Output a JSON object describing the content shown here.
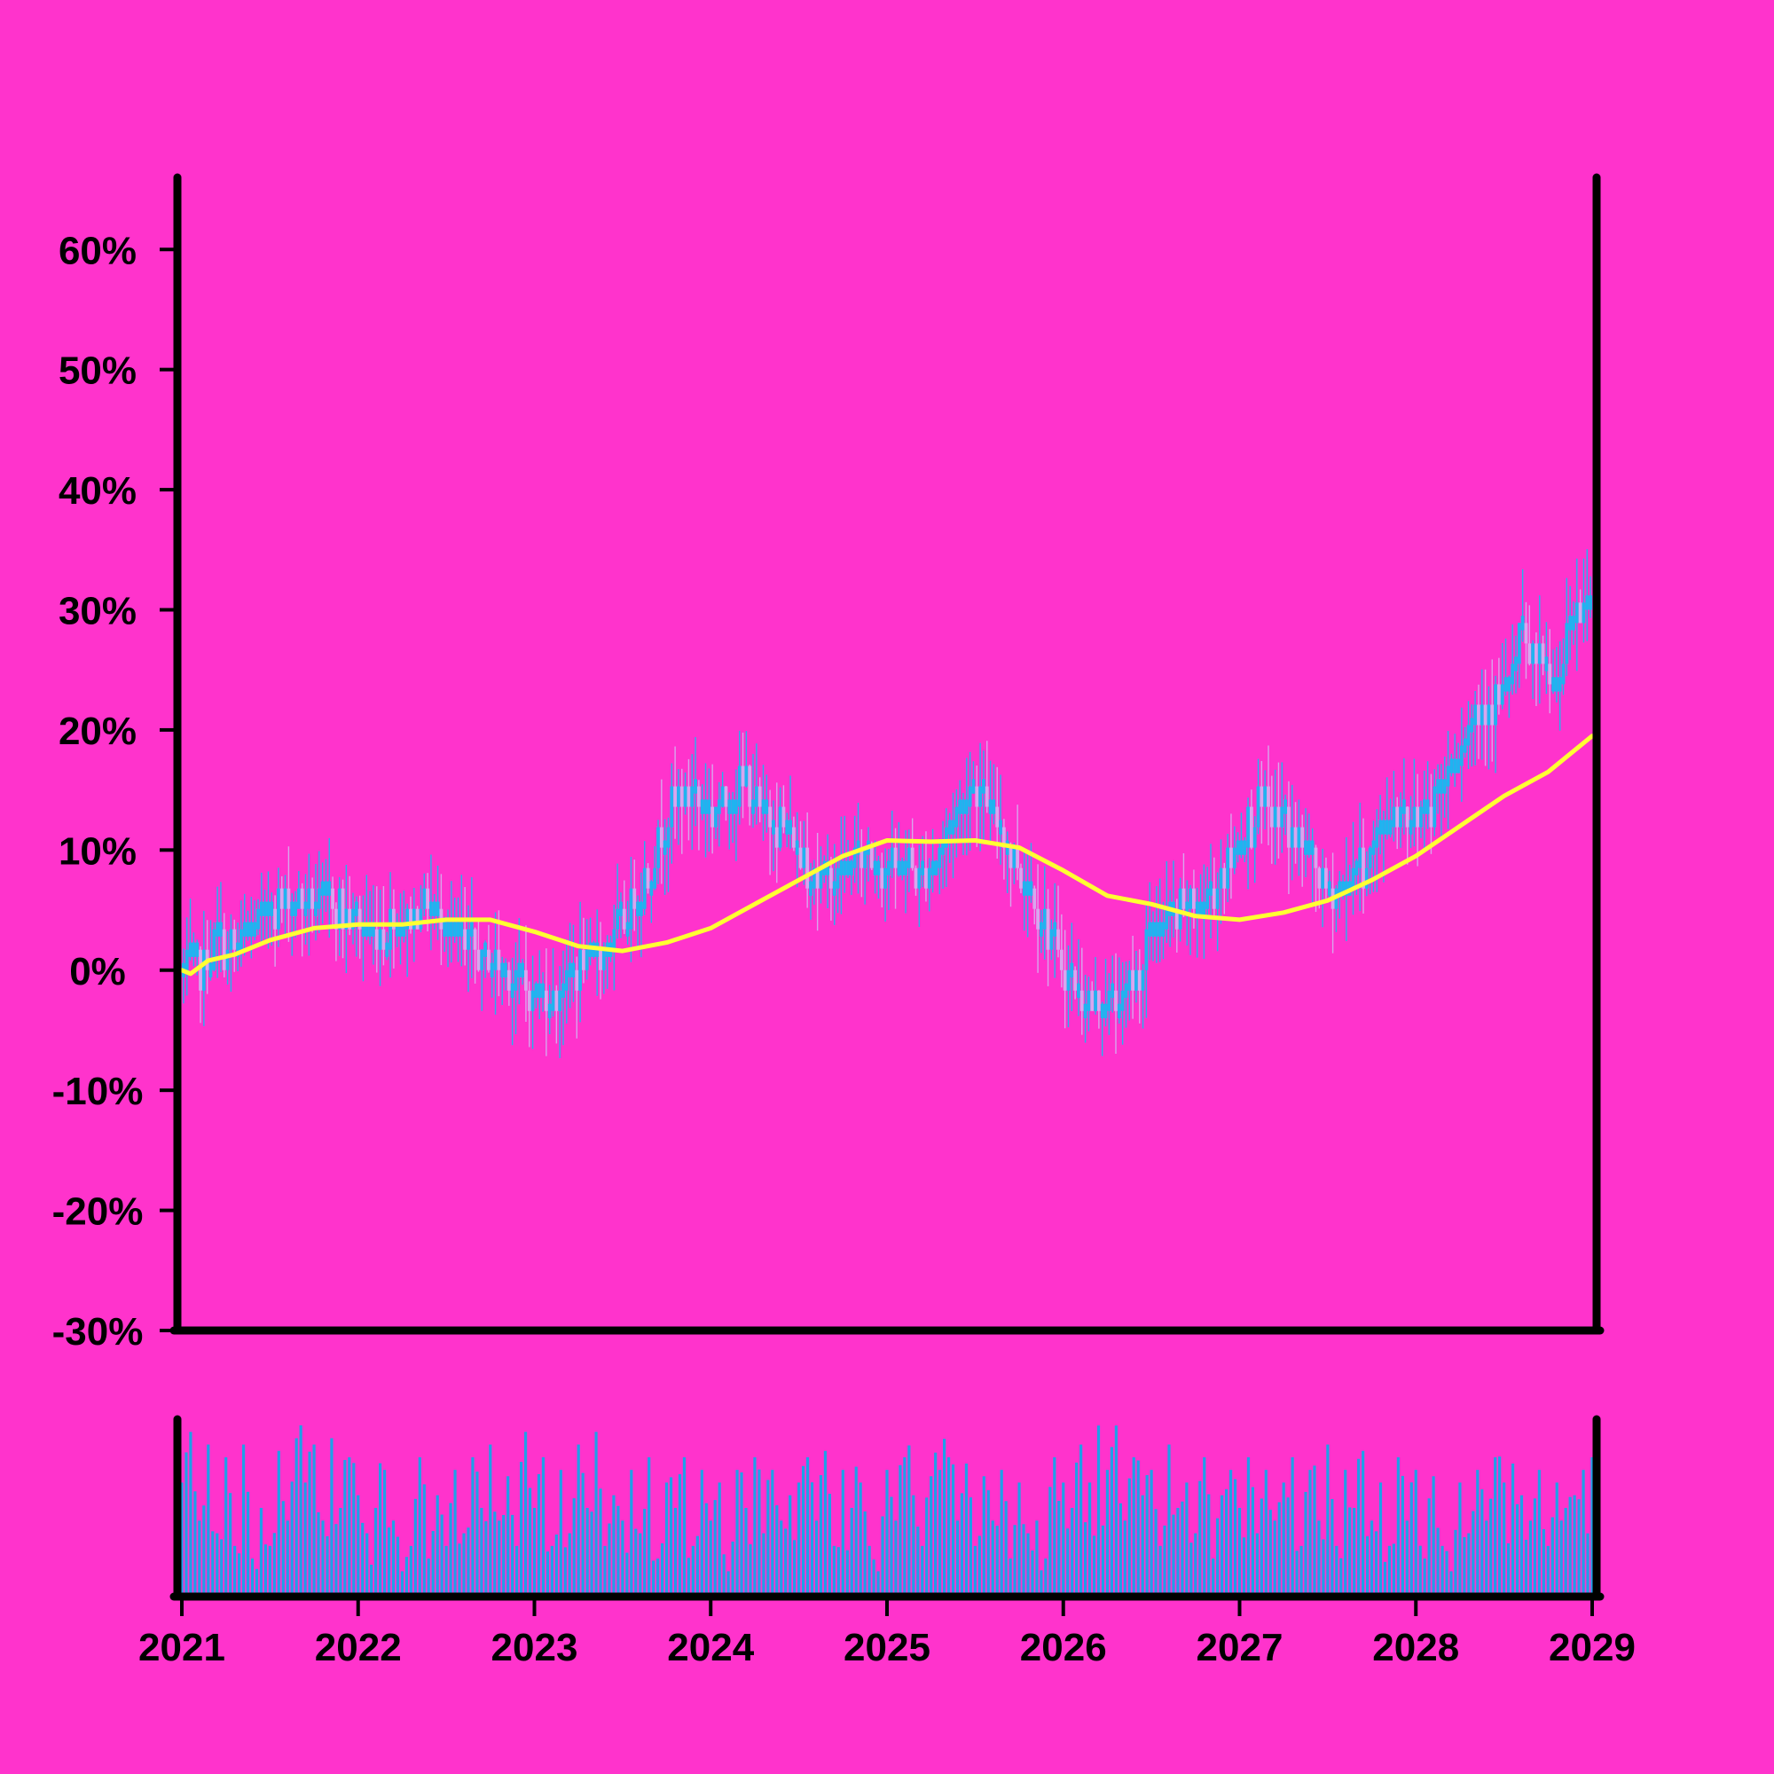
{
  "chart_data": {
    "type": "candlestick",
    "colors": {
      "background": "#ff33cc",
      "up_candle": "#1fb4f0",
      "down_candle": "#d8a6ee",
      "moving_average": "#ffff33",
      "volume": "#1fa0e8",
      "axes": "#000000"
    },
    "grid": false,
    "y_axis": {
      "unit": "%",
      "ylim": [
        -30,
        66
      ],
      "ticks": [
        -30,
        -20,
        -10,
        0,
        10,
        20,
        30,
        40,
        50,
        60
      ],
      "tick_labels": [
        "-30%",
        "-20%",
        "-10%",
        "0%",
        "10%",
        "20%",
        "30%",
        "40%",
        "50%",
        "60%"
      ]
    },
    "x_axis": {
      "xlim": [
        2021,
        2029
      ],
      "ticks": [
        2021,
        2022,
        2023,
        2024,
        2025,
        2026,
        2027,
        2028,
        2029
      ],
      "tick_labels": [
        "2021",
        "2022",
        "2023",
        "2024",
        "2025",
        "2026",
        "2027",
        "2028",
        "2029"
      ]
    },
    "price_series": {
      "name": "",
      "closes": [
        [
          2021.0,
          0
        ],
        [
          2021.1,
          0
        ],
        [
          2021.2,
          2
        ],
        [
          2021.3,
          2
        ],
        [
          2021.4,
          3
        ],
        [
          2021.5,
          5
        ],
        [
          2021.6,
          6
        ],
        [
          2021.7,
          6
        ],
        [
          2021.8,
          6
        ],
        [
          2021.9,
          5
        ],
        [
          2022.0,
          4
        ],
        [
          2022.1,
          3
        ],
        [
          2022.2,
          4
        ],
        [
          2022.3,
          5
        ],
        [
          2022.4,
          6
        ],
        [
          2022.5,
          4
        ],
        [
          2022.6,
          2
        ],
        [
          2022.7,
          1
        ],
        [
          2022.8,
          1
        ],
        [
          2022.9,
          -1
        ],
        [
          2023.0,
          -2
        ],
        [
          2023.1,
          -2
        ],
        [
          2023.2,
          -1
        ],
        [
          2023.3,
          1
        ],
        [
          2023.4,
          2
        ],
        [
          2023.5,
          4
        ],
        [
          2023.6,
          7
        ],
        [
          2023.7,
          10
        ],
        [
          2023.8,
          14
        ],
        [
          2023.9,
          15
        ],
        [
          2024.0,
          13
        ],
        [
          2024.1,
          14
        ],
        [
          2024.2,
          16
        ],
        [
          2024.3,
          13
        ],
        [
          2024.4,
          12
        ],
        [
          2024.5,
          10
        ],
        [
          2024.6,
          8
        ],
        [
          2024.7,
          8
        ],
        [
          2024.8,
          9
        ],
        [
          2024.9,
          10
        ],
        [
          2025.0,
          8
        ],
        [
          2025.1,
          9
        ],
        [
          2025.2,
          8
        ],
        [
          2025.3,
          10
        ],
        [
          2025.4,
          13
        ],
        [
          2025.5,
          16
        ],
        [
          2025.6,
          13
        ],
        [
          2025.7,
          10
        ],
        [
          2025.8,
          7
        ],
        [
          2025.9,
          4
        ],
        [
          2026.0,
          0
        ],
        [
          2026.1,
          -2
        ],
        [
          2026.2,
          -3
        ],
        [
          2026.3,
          -3
        ],
        [
          2026.4,
          -1
        ],
        [
          2026.5,
          3
        ],
        [
          2026.6,
          4
        ],
        [
          2026.7,
          5
        ],
        [
          2026.8,
          5
        ],
        [
          2026.9,
          8
        ],
        [
          2027.0,
          11
        ],
        [
          2027.1,
          13
        ],
        [
          2027.2,
          13
        ],
        [
          2027.3,
          12
        ],
        [
          2027.4,
          9
        ],
        [
          2027.5,
          6
        ],
        [
          2027.6,
          7
        ],
        [
          2027.7,
          9
        ],
        [
          2027.8,
          11
        ],
        [
          2027.9,
          14
        ],
        [
          2028.0,
          13
        ],
        [
          2028.1,
          14
        ],
        [
          2028.2,
          17
        ],
        [
          2028.3,
          21
        ],
        [
          2028.4,
          22
        ],
        [
          2028.5,
          23
        ],
        [
          2028.6,
          28
        ],
        [
          2028.7,
          25
        ],
        [
          2028.8,
          24
        ],
        [
          2028.9,
          29
        ],
        [
          2029.0,
          32
        ]
      ],
      "last_high": 36,
      "last_low": 31
    },
    "moving_average": {
      "name": "",
      "points": [
        [
          2021.0,
          0
        ],
        [
          2021.05,
          -0.3
        ],
        [
          2021.15,
          0.8
        ],
        [
          2021.3,
          1.3
        ],
        [
          2021.5,
          2.5
        ],
        [
          2021.75,
          3.5
        ],
        [
          2022.0,
          3.8
        ],
        [
          2022.25,
          3.8
        ],
        [
          2022.5,
          4.2
        ],
        [
          2022.75,
          4.2
        ],
        [
          2023.0,
          3.2
        ],
        [
          2023.25,
          2.0
        ],
        [
          2023.5,
          1.6
        ],
        [
          2023.75,
          2.3
        ],
        [
          2024.0,
          3.5
        ],
        [
          2024.25,
          5.5
        ],
        [
          2024.5,
          7.5
        ],
        [
          2024.75,
          9.5
        ],
        [
          2025.0,
          10.8
        ],
        [
          2025.25,
          10.7
        ],
        [
          2025.5,
          10.8
        ],
        [
          2025.75,
          10.2
        ],
        [
          2026.0,
          8.3
        ],
        [
          2026.25,
          6.2
        ],
        [
          2026.5,
          5.5
        ],
        [
          2026.75,
          4.5
        ],
        [
          2027.0,
          4.2
        ],
        [
          2027.25,
          4.8
        ],
        [
          2027.5,
          5.8
        ],
        [
          2027.75,
          7.5
        ],
        [
          2028.0,
          9.5
        ],
        [
          2028.25,
          12.0
        ],
        [
          2028.5,
          14.5
        ],
        [
          2028.75,
          16.5
        ],
        [
          2029.0,
          19.5
        ]
      ]
    },
    "volume": {
      "ylim": [
        0,
        140
      ],
      "bars": [
        [
          2021.0,
          90
        ],
        [
          2021.05,
          130
        ],
        [
          2021.1,
          60
        ],
        [
          2021.15,
          120
        ],
        [
          2021.2,
          50
        ],
        [
          2021.25,
          110
        ],
        [
          2021.3,
          40
        ],
        [
          2021.35,
          120
        ],
        [
          2021.4,
          30
        ],
        [
          2021.45,
          70
        ],
        [
          2021.5,
          40
        ],
        [
          2021.55,
          115
        ],
        [
          2021.6,
          60
        ],
        [
          2021.65,
          125
        ],
        [
          2021.7,
          90
        ],
        [
          2021.75,
          120
        ],
        [
          2021.8,
          60
        ],
        [
          2021.85,
          125
        ],
        [
          2021.9,
          70
        ],
        [
          2021.95,
          110
        ],
        [
          2022.0,
          80
        ],
        [
          2022.05,
          50
        ],
        [
          2022.1,
          70
        ],
        [
          2022.15,
          100
        ],
        [
          2022.2,
          60
        ],
        [
          2022.25,
          20
        ],
        [
          2022.3,
          40
        ],
        [
          2022.35,
          110
        ],
        [
          2022.4,
          30
        ],
        [
          2022.45,
          80
        ],
        [
          2022.5,
          40
        ],
        [
          2022.55,
          100
        ],
        [
          2022.6,
          50
        ],
        [
          2022.65,
          110
        ],
        [
          2022.7,
          70
        ],
        [
          2022.75,
          120
        ],
        [
          2022.8,
          60
        ],
        [
          2022.85,
          95
        ],
        [
          2022.9,
          40
        ],
        [
          2022.95,
          130
        ],
        [
          2023.0,
          70
        ],
        [
          2023.05,
          110
        ],
        [
          2023.1,
          40
        ],
        [
          2023.15,
          100
        ],
        [
          2023.2,
          50
        ],
        [
          2023.25,
          120
        ],
        [
          2023.3,
          70
        ],
        [
          2023.35,
          130
        ],
        [
          2023.4,
          40
        ],
        [
          2023.45,
          80
        ],
        [
          2023.5,
          60
        ],
        [
          2023.55,
          100
        ],
        [
          2023.6,
          50
        ],
        [
          2023.65,
          110
        ],
        [
          2023.7,
          30
        ],
        [
          2023.75,
          90
        ],
        [
          2023.8,
          70
        ],
        [
          2023.85,
          110
        ],
        [
          2023.9,
          40
        ],
        [
          2023.95,
          100
        ],
        [
          2024.0,
          60
        ],
        [
          2024.05,
          90
        ],
        [
          2024.1,
          20
        ],
        [
          2024.15,
          100
        ],
        [
          2024.2,
          70
        ],
        [
          2024.25,
          110
        ],
        [
          2024.3,
          50
        ],
        [
          2024.35,
          100
        ],
        [
          2024.4,
          60
        ],
        [
          2024.45,
          80
        ],
        [
          2024.5,
          90
        ],
        [
          2024.55,
          110
        ],
        [
          2024.6,
          60
        ],
        [
          2024.65,
          115
        ],
        [
          2024.7,
          40
        ],
        [
          2024.75,
          100
        ],
        [
          2024.8,
          70
        ],
        [
          2024.85,
          90
        ],
        [
          2024.9,
          40
        ],
        [
          2024.95,
          20
        ],
        [
          2025.0,
          100
        ],
        [
          2025.05,
          60
        ],
        [
          2025.1,
          110
        ],
        [
          2025.15,
          80
        ],
        [
          2025.2,
          40
        ],
        [
          2025.25,
          95
        ],
        [
          2025.3,
          100
        ],
        [
          2025.35,
          110
        ],
        [
          2025.4,
          60
        ],
        [
          2025.45,
          105
        ],
        [
          2025.5,
          40
        ],
        [
          2025.55,
          95
        ],
        [
          2025.6,
          60
        ],
        [
          2025.65,
          100
        ],
        [
          2025.7,
          30
        ],
        [
          2025.75,
          90
        ],
        [
          2025.8,
          50
        ],
        [
          2025.85,
          60
        ],
        [
          2025.9,
          30
        ],
        [
          2025.95,
          110
        ],
        [
          2026.0,
          90
        ],
        [
          2026.05,
          70
        ],
        [
          2026.1,
          120
        ],
        [
          2026.15,
          90
        ],
        [
          2026.2,
          135
        ],
        [
          2026.25,
          100
        ],
        [
          2026.3,
          135
        ],
        [
          2026.35,
          60
        ],
        [
          2026.4,
          110
        ],
        [
          2026.45,
          80
        ],
        [
          2026.5,
          100
        ],
        [
          2026.55,
          40
        ],
        [
          2026.6,
          120
        ],
        [
          2026.65,
          70
        ],
        [
          2026.7,
          90
        ],
        [
          2026.75,
          50
        ],
        [
          2026.8,
          110
        ],
        [
          2026.85,
          30
        ],
        [
          2026.9,
          80
        ],
        [
          2026.95,
          100
        ],
        [
          2027.0,
          70
        ],
        [
          2027.05,
          110
        ],
        [
          2027.1,
          50
        ],
        [
          2027.15,
          100
        ],
        [
          2027.2,
          60
        ],
        [
          2027.25,
          90
        ],
        [
          2027.3,
          110
        ],
        [
          2027.35,
          40
        ],
        [
          2027.4,
          100
        ],
        [
          2027.45,
          60
        ],
        [
          2027.5,
          120
        ],
        [
          2027.55,
          40
        ],
        [
          2027.6,
          100
        ],
        [
          2027.65,
          70
        ],
        [
          2027.7,
          115
        ],
        [
          2027.75,
          60
        ],
        [
          2027.8,
          90
        ],
        [
          2027.85,
          40
        ],
        [
          2027.9,
          110
        ],
        [
          2027.95,
          60
        ],
        [
          2028.0,
          100
        ],
        [
          2028.05,
          30
        ],
        [
          2028.1,
          95
        ],
        [
          2028.15,
          40
        ],
        [
          2028.2,
          20
        ],
        [
          2028.25,
          90
        ],
        [
          2028.3,
          50
        ],
        [
          2028.35,
          100
        ],
        [
          2028.4,
          60
        ],
        [
          2028.45,
          110
        ],
        [
          2028.5,
          90
        ],
        [
          2028.55,
          105
        ],
        [
          2028.6,
          80
        ],
        [
          2028.65,
          60
        ],
        [
          2028.7,
          100
        ],
        [
          2028.75,
          40
        ],
        [
          2028.8,
          90
        ],
        [
          2028.85,
          70
        ],
        [
          2028.9,
          80
        ],
        [
          2028.95,
          100
        ],
        [
          2029.0,
          110
        ]
      ]
    }
  }
}
